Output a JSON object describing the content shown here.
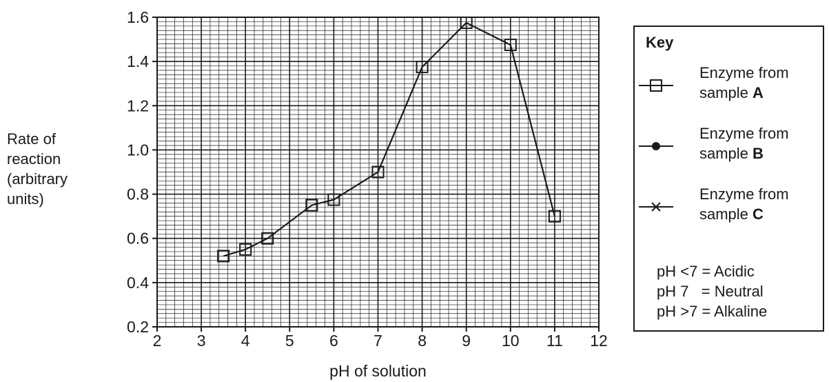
{
  "chart_data": {
    "type": "line",
    "xlabel": "pH of solution",
    "ylabel_lines": [
      "Rate of",
      "reaction",
      "(arbitrary",
      "units)"
    ],
    "xlim": [
      2,
      12
    ],
    "ylim": [
      0.2,
      1.6
    ],
    "x_ticks": [
      "2",
      "3",
      "4",
      "5",
      "6",
      "7",
      "8",
      "9",
      "10",
      "11",
      "12"
    ],
    "y_ticks": [
      "0.2",
      "0.4",
      "0.6",
      "0.8",
      "1.0",
      "1.2",
      "1.4",
      "1.6"
    ],
    "grid": "fine graph paper (minor 0.2 pH × 0.02 units, major every 1 pH × 0.2 units)",
    "series": [
      {
        "name": "Enzyme from sample A",
        "marker": "square",
        "x": [
          3.5,
          4,
          4.5,
          5.5,
          6,
          7,
          8,
          9,
          10,
          11
        ],
        "y": [
          0.52,
          0.55,
          0.6,
          0.75,
          0.775,
          0.9,
          1.375,
          1.575,
          1.475,
          0.7
        ]
      }
    ],
    "legend_placement": "right"
  },
  "key": {
    "title": "Key",
    "items": [
      {
        "line1": "Enzyme from",
        "line2_prefix": "sample ",
        "line2_bold": "A",
        "symbol": "square-icon"
      },
      {
        "line1": "Enzyme from",
        "line2_prefix": "sample ",
        "line2_bold": "B",
        "symbol": "filled-circle-icon"
      },
      {
        "line1": "Enzyme from",
        "line2_prefix": "sample ",
        "line2_bold": "C",
        "symbol": "cross-icon"
      }
    ],
    "notes": [
      "pH <7 = Acidic",
      "pH 7   = Neutral",
      "pH >7 = Alkaline"
    ]
  },
  "colors": {
    "ink": "#1a1a1a",
    "background": "#ffffff"
  }
}
